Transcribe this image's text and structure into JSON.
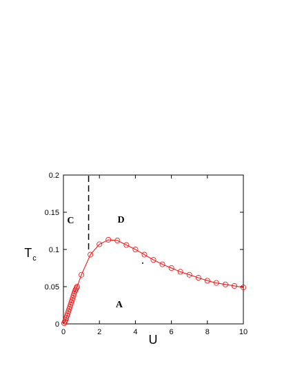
{
  "chart_data": {
    "type": "line",
    "xlabel": "U",
    "ylabel": "T",
    "ylabel_sub": "c",
    "xlim": [
      0,
      10
    ],
    "ylim": [
      0,
      0.2
    ],
    "x_ticks": [
      "0",
      "2",
      "4",
      "6",
      "8",
      "10"
    ],
    "y_ticks": [
      "0",
      "0.05",
      "0.1",
      "0.15",
      "0.2"
    ],
    "grid": false,
    "series": [
      {
        "color": "#ff0000",
        "marker": "open-circle",
        "x": [
          0.04,
          0.08,
          0.12,
          0.16,
          0.2,
          0.24,
          0.28,
          0.32,
          0.36,
          0.4,
          0.44,
          0.48,
          0.52,
          0.56,
          0.6,
          0.64,
          0.68,
          0.72,
          0.76,
          1.0,
          1.5,
          2.0,
          2.5,
          3.0,
          3.5,
          4.0,
          4.5,
          5.0,
          5.5,
          6.0,
          6.5,
          7.0,
          7.5,
          8.0,
          8.5,
          9.0,
          9.5,
          10.0
        ],
        "y": [
          0.001,
          0.003,
          0.005,
          0.008,
          0.011,
          0.014,
          0.017,
          0.02,
          0.023,
          0.026,
          0.029,
          0.032,
          0.035,
          0.038,
          0.041,
          0.044,
          0.046,
          0.048,
          0.05,
          0.066,
          0.093,
          0.107,
          0.113,
          0.112,
          0.106,
          0.1,
          0.093,
          0.086,
          0.08,
          0.075,
          0.07,
          0.066,
          0.062,
          0.058,
          0.055,
          0.053,
          0.051,
          0.049
        ]
      }
    ],
    "vertical_dashed_line": {
      "x": 1.4,
      "y_from": 0.1,
      "y_to": 0.2,
      "color": "#000000"
    },
    "annotations": [
      {
        "text": "C",
        "x": 0.4,
        "y": 0.135
      },
      {
        "text": "D",
        "x": 3.2,
        "y": 0.136
      },
      {
        "text": "A",
        "x": 3.1,
        "y": 0.022
      }
    ]
  }
}
